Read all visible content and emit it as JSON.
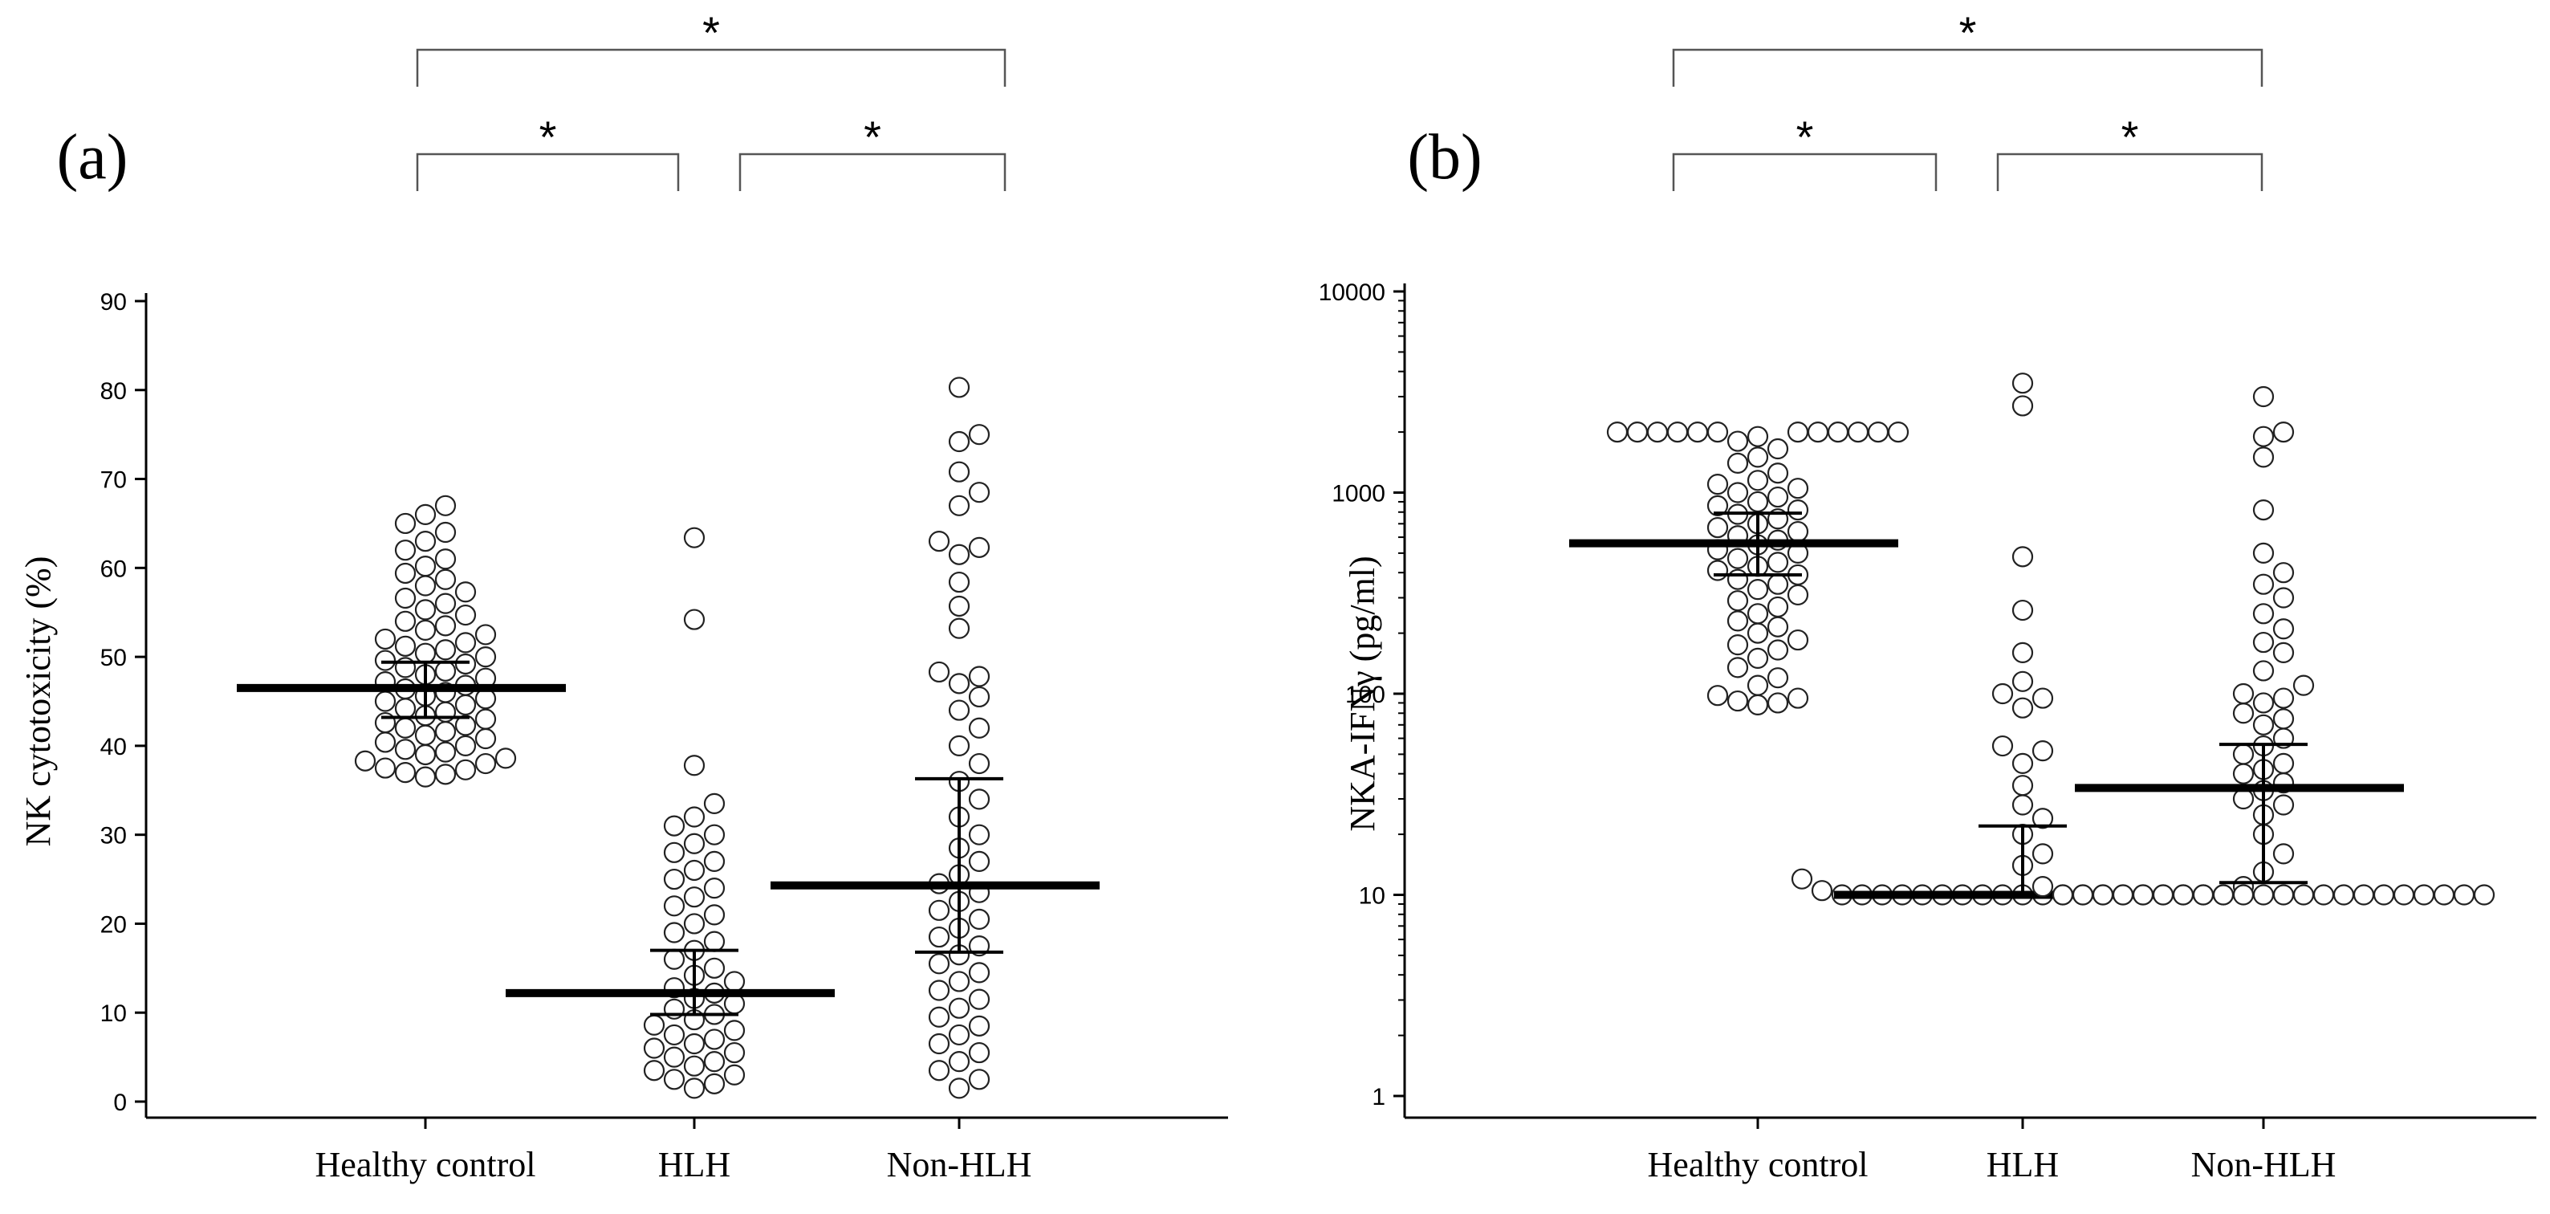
{
  "chart_data": [
    {
      "panel_label": "(a)",
      "type": "scatter",
      "ylabel": "NK cytotoxicity (%)",
      "y_scale": "linear",
      "ylim": [
        0,
        90
      ],
      "yticks": [
        "0",
        "10",
        "20",
        "30",
        "40",
        "50",
        "60",
        "70",
        "80",
        "90"
      ],
      "categories": [
        "Healthy control",
        "HLH",
        "Non-HLH"
      ],
      "significance": [
        {
          "from": "Healthy control",
          "to": "HLH",
          "label": "*"
        },
        {
          "from": "HLH",
          "to": "Non-HLH",
          "label": "*"
        },
        {
          "from": "Healthy control",
          "to": "Non-HLH",
          "label": "*"
        }
      ],
      "medians": [
        46.5,
        12.2,
        24.3
      ],
      "iqr": [
        [
          43.2,
          49.4
        ],
        [
          9.8,
          17.0
        ],
        [
          16.8,
          36.3
        ]
      ],
      "series": [
        {
          "values": [
            36.5,
            36.8,
            37.0,
            37.3,
            37.5,
            38.0,
            38.3,
            38.6,
            39.0,
            39.3,
            39.6,
            40.0,
            40.4,
            40.8,
            41.2,
            41.6,
            42.0,
            42.3,
            42.6,
            43.0,
            43.4,
            43.8,
            44.2,
            44.6,
            45.0,
            45.3,
            45.6,
            46.0,
            46.4,
            46.8,
            47.2,
            47.6,
            48.0,
            48.4,
            48.8,
            49.2,
            49.6,
            50.0,
            50.4,
            50.8,
            51.2,
            51.6,
            52.0,
            52.5,
            53.0,
            53.5,
            54.0,
            54.7,
            55.3,
            56.0,
            56.6,
            57.3,
            58.0,
            58.7,
            59.4,
            60.2,
            61.0,
            62.0,
            63.0,
            64.0,
            65.0,
            66.0,
            67.0
          ]
        },
        {
          "values": [
            1.5,
            2.0,
            2.5,
            3.0,
            3.5,
            4.0,
            4.5,
            5.0,
            5.5,
            6.0,
            6.5,
            7.0,
            7.5,
            8.0,
            8.6,
            9.2,
            9.8,
            10.4,
            11.0,
            11.6,
            12.2,
            12.8,
            13.5,
            14.2,
            15.0,
            16.0,
            17.0,
            18.0,
            19.0,
            20.0,
            21.0,
            22.0,
            23.0,
            24.0,
            25.0,
            26.0,
            27.0,
            28.0,
            29.0,
            30.0,
            31.0,
            32.0,
            33.5,
            37.8,
            54.2,
            63.4
          ]
        },
        {
          "values": [
            1.5,
            2.5,
            3.5,
            4.5,
            5.5,
            6.5,
            7.5,
            8.5,
            9.5,
            10.5,
            11.5,
            12.5,
            13.5,
            14.5,
            15.5,
            16.5,
            17.5,
            18.5,
            19.5,
            20.5,
            21.5,
            22.5,
            23.5,
            24.5,
            25.5,
            27.0,
            28.5,
            30.0,
            32.0,
            34.0,
            36.0,
            38.0,
            40.0,
            42.0,
            44.0,
            45.5,
            47.0,
            47.8,
            48.3,
            53.2,
            55.7,
            58.4,
            61.5,
            62.3,
            63.0,
            67.0,
            68.5,
            70.8,
            74.2,
            75.0,
            80.3
          ]
        }
      ]
    },
    {
      "panel_label": "(b)",
      "type": "scatter",
      "ylabel": "NKA-IFNγ (pg/ml)",
      "y_scale": "log",
      "ylim": [
        1,
        10000
      ],
      "yticks": [
        "1",
        "10",
        "100",
        "1000",
        "10000"
      ],
      "categories": [
        "Healthy control",
        "HLH",
        "Non-HLH"
      ],
      "significance": [
        {
          "from": "Healthy control",
          "to": "HLH",
          "label": "*"
        },
        {
          "from": "HLH",
          "to": "Non-HLH",
          "label": "*"
        },
        {
          "from": "Healthy control",
          "to": "Non-HLH",
          "label": "*"
        }
      ],
      "medians": [
        560,
        10,
        34
      ],
      "iqr": [
        [
          390,
          790
        ],
        [
          10,
          22
        ],
        [
          11.5,
          56
        ]
      ],
      "series": [
        {
          "values": [
            88,
            90,
            92,
            95,
            98,
            110,
            120,
            135,
            150,
            165,
            175,
            185,
            200,
            215,
            230,
            250,
            270,
            290,
            310,
            330,
            350,
            370,
            390,
            410,
            430,
            450,
            470,
            500,
            520,
            550,
            580,
            610,
            640,
            670,
            700,
            740,
            780,
            820,
            860,
            900,
            950,
            1000,
            1050,
            1100,
            1150,
            1250,
            1400,
            1500,
            1650,
            1800,
            1900,
            2000,
            2000,
            2000,
            2000,
            2000,
            2000,
            2000,
            2000,
            2000,
            2000,
            2000,
            2000
          ]
        },
        {
          "values": [
            10,
            10,
            10,
            10,
            10,
            10,
            10,
            10,
            10,
            10,
            10,
            10,
            10,
            10,
            10,
            10,
            10,
            10,
            10,
            10,
            10.5,
            11,
            12,
            14,
            16,
            20,
            24,
            28,
            35,
            45,
            52,
            55,
            85,
            95,
            100,
            115,
            160,
            260,
            480,
            2700,
            3500
          ]
        },
        {
          "values": [
            10,
            10,
            10,
            10,
            10,
            10,
            10,
            10,
            10,
            10,
            10,
            10,
            10,
            10,
            10,
            10,
            10,
            10,
            10,
            10,
            10,
            10,
            11,
            13,
            16,
            20,
            25,
            28,
            30,
            33,
            36,
            40,
            42,
            45,
            50,
            55,
            60,
            70,
            75,
            80,
            90,
            95,
            100,
            110,
            130,
            160,
            180,
            210,
            250,
            300,
            350,
            400,
            500,
            820,
            1500,
            1900,
            2000,
            3000
          ]
        }
      ]
    }
  ]
}
